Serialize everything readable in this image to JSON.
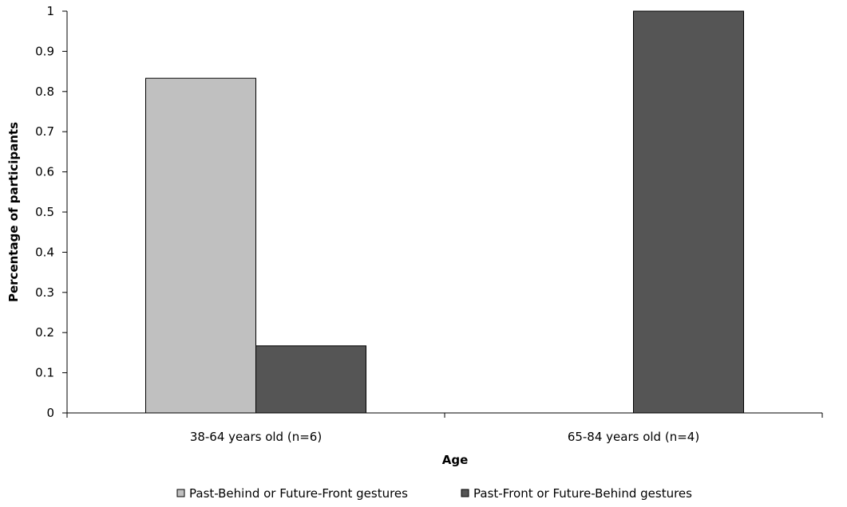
{
  "chart_data": {
    "type": "bar",
    "categories": [
      "38-64 years old (n=6)",
      "65-84 years old (n=4)"
    ],
    "series": [
      {
        "name": "Past-Behind or Future-Front gestures",
        "values": [
          0.833,
          0
        ],
        "color": "#c0c0c0"
      },
      {
        "name": "Past-Front or Future-Behind gestures",
        "values": [
          0.167,
          1
        ],
        "color": "#555555"
      }
    ],
    "title": "",
    "xlabel": "Age",
    "ylabel": "Percentage of participants",
    "ylim": [
      0,
      1
    ],
    "yticks": [
      "0",
      "0.1",
      "0.2",
      "0.3",
      "0.4",
      "0.5",
      "0.6",
      "0.7",
      "0.8",
      "0.9",
      "1"
    ],
    "grid": false,
    "legend_position": "bottom"
  }
}
